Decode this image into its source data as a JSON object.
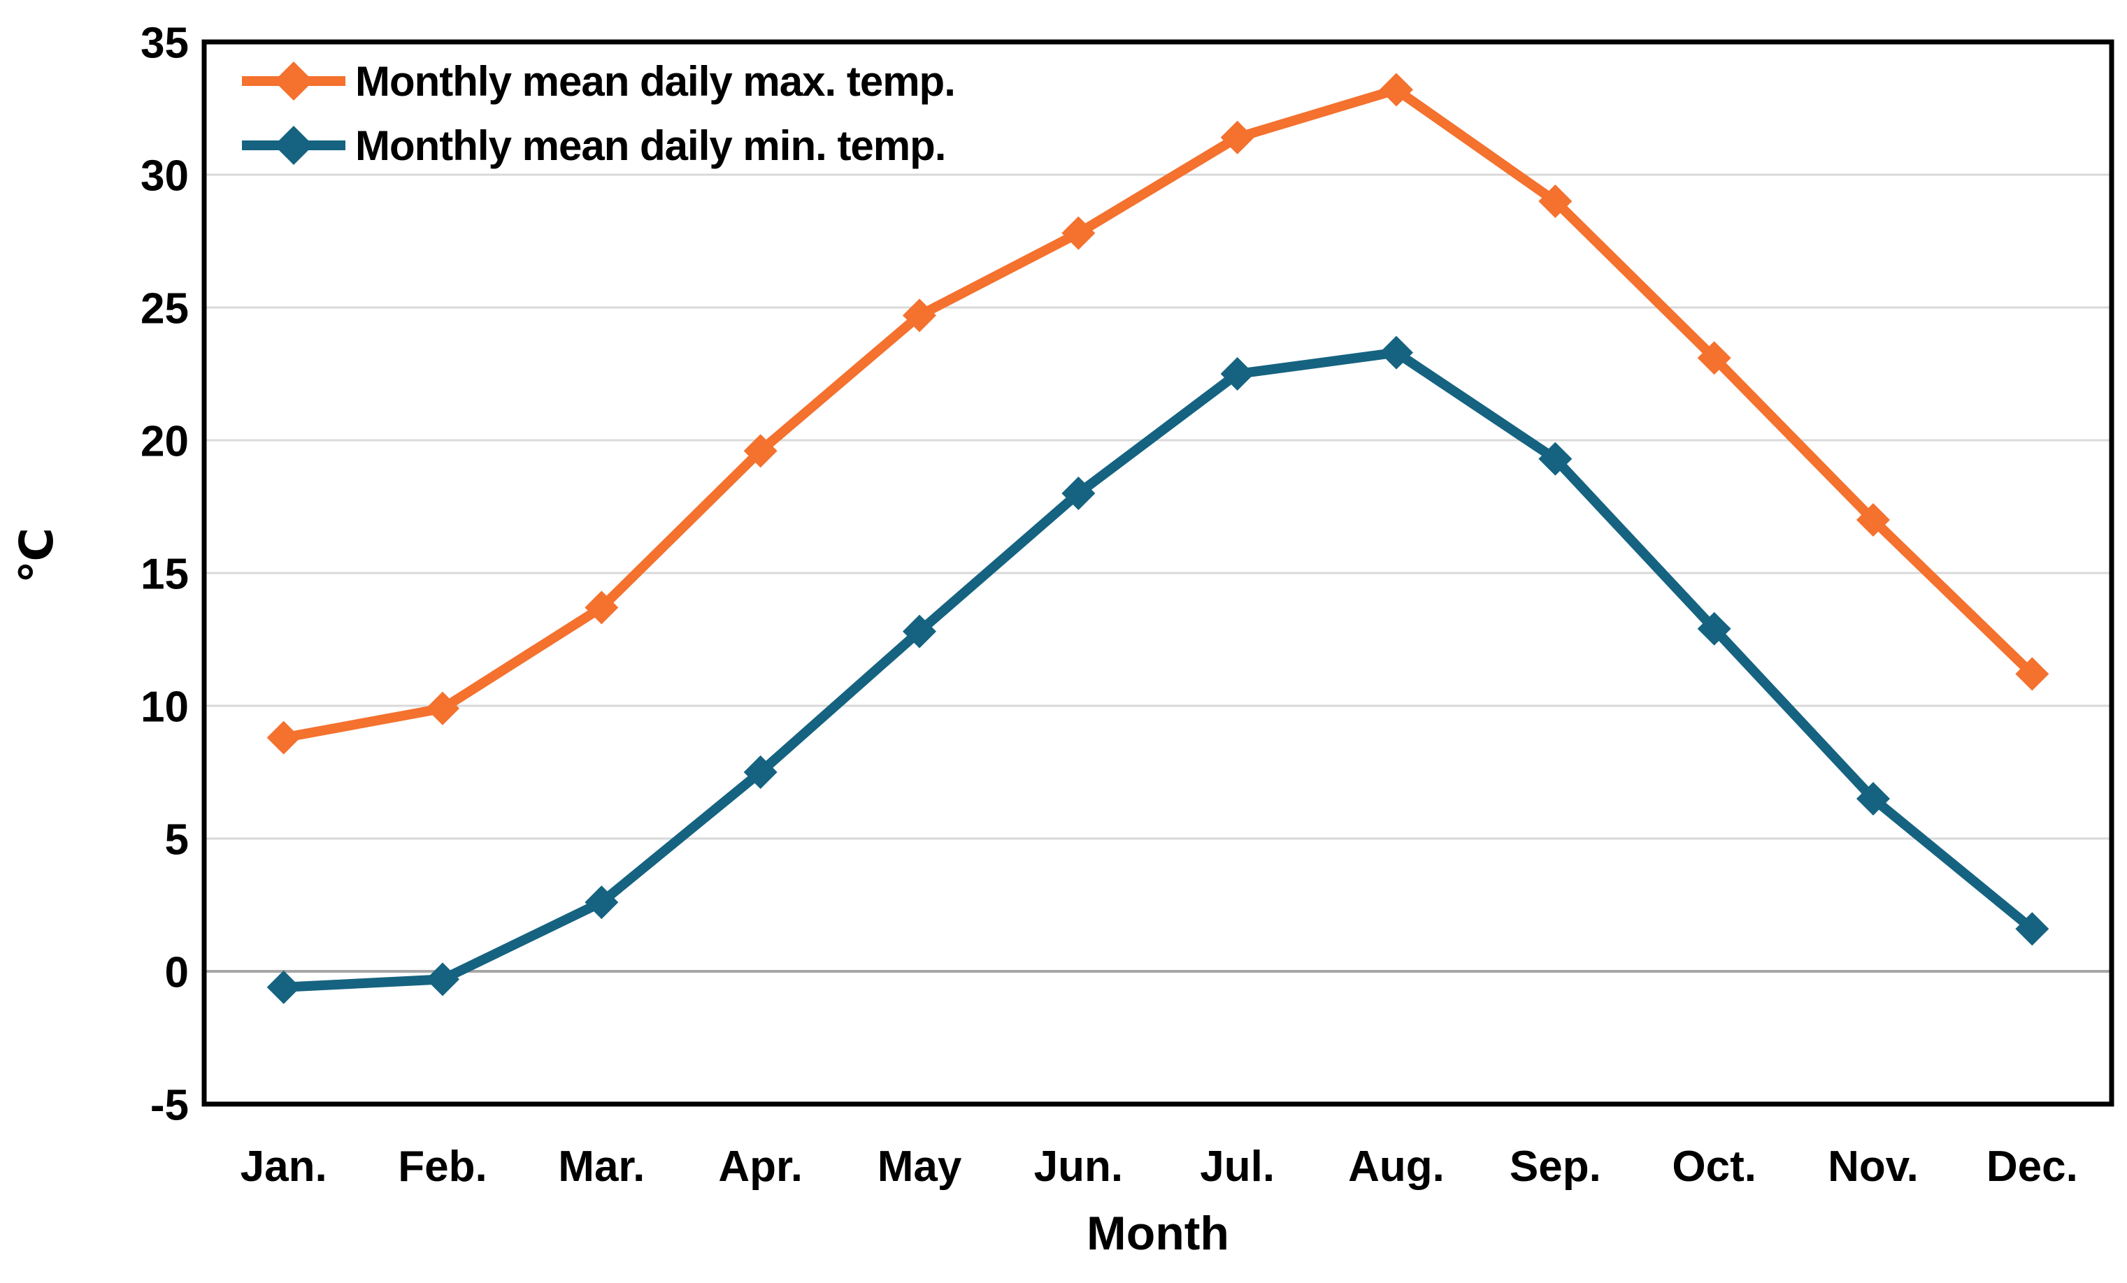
{
  "chart_data": {
    "type": "line",
    "title": "",
    "categories": [
      "Jan.",
      "Feb.",
      "Mar.",
      "Apr.",
      "May",
      "Jun.",
      "Jul.",
      "Aug.",
      "Sep.",
      "Oct.",
      "Nov.",
      "Dec."
    ],
    "series": [
      {
        "name": "Monthly mean daily max. temp.",
        "color": "#F4712E",
        "marker": "diamond",
        "values": [
          8.8,
          9.9,
          13.7,
          19.6,
          24.7,
          27.8,
          31.4,
          33.2,
          29.0,
          23.1,
          17.0,
          11.2
        ]
      },
      {
        "name": "Monthly mean daily min. temp.",
        "color": "#156380",
        "marker": "diamond",
        "values": [
          -0.6,
          -0.3,
          2.6,
          7.5,
          12.8,
          18.0,
          22.5,
          23.3,
          19.3,
          12.9,
          6.5,
          1.6
        ]
      }
    ],
    "xlabel": "Month",
    "ylabel": "℃",
    "ylim": [
      -5,
      35
    ],
    "ytick_step": 5,
    "yticks": [
      -5,
      0,
      5,
      10,
      15,
      20,
      25,
      30,
      35
    ],
    "grid": true,
    "legend_position": "top-left-inside",
    "colors": {
      "gridline": "#D9D9D9",
      "zero_gridline": "#A6A6A6",
      "axis_border": "#000000",
      "text": "#000000",
      "background": "#FFFFFF"
    }
  }
}
